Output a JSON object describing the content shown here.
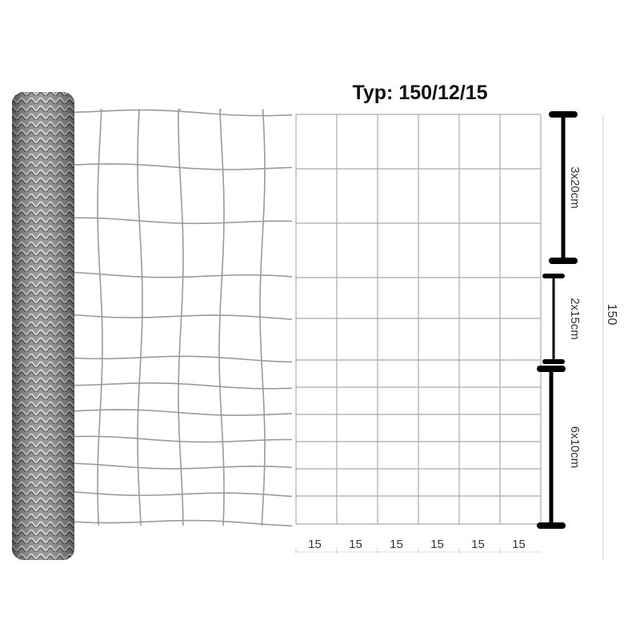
{
  "title": "Typ: 150/12/15",
  "brackets": [
    {
      "label": "3x20cm"
    },
    {
      "label": "2x15cm"
    },
    {
      "label": "6x10cm"
    }
  ],
  "total_height_label": "150",
  "column_labels": [
    "15",
    "15",
    "15",
    "15",
    "15",
    "15"
  ],
  "colors": {
    "wire": "#9a9a9a",
    "bracket": "#000000",
    "roll": "#6e6e6e"
  }
}
